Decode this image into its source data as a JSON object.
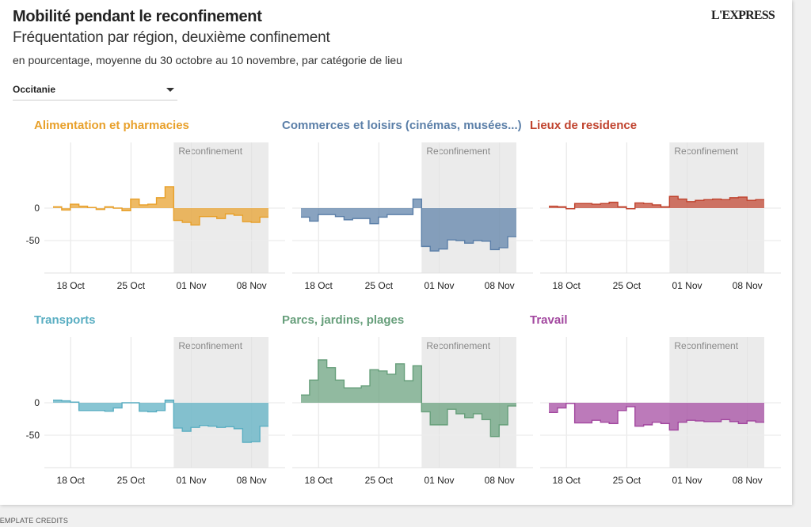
{
  "header": {
    "title": "Mobilité pendant le reconfinement",
    "subtitle": "Fréquentation par région, deuxième confinement",
    "description": "en pourcentage, moyenne du 30 octobre au 10 novembre, par catégorie de lieu",
    "logo": "L'EXPRESS"
  },
  "region_select": {
    "selected": "Occitanie"
  },
  "footer": {
    "credits": "TEMPLATE CREDITS"
  },
  "chart_data": {
    "type": "area",
    "step": true,
    "dates": [
      "16 Oct",
      "17 Oct",
      "18 Oct",
      "19 Oct",
      "20 Oct",
      "21 Oct",
      "22 Oct",
      "23 Oct",
      "24 Oct",
      "25 Oct",
      "26 Oct",
      "27 Oct",
      "28 Oct",
      "29 Oct",
      "30 Oct",
      "31 Oct",
      "01 Nov",
      "02 Nov",
      "03 Nov",
      "04 Nov",
      "05 Nov",
      "06 Nov",
      "07 Nov",
      "08 Nov",
      "09 Nov"
    ],
    "x_ticks": [
      "18 Oct",
      "25 Oct",
      "01 Nov",
      "08 Nov"
    ],
    "y_ticks": [
      "0",
      "-50"
    ],
    "y_tick_values": [
      0,
      -50
    ],
    "ylim": [
      -100,
      100
    ],
    "annotation": {
      "label": "Reconfinement",
      "from": "30 Oct",
      "to": "10 Nov"
    },
    "panels": [
      {
        "title": "Alimentation et pharmacies",
        "color": "#e8a02a",
        "values": [
          2,
          -3,
          6,
          3,
          1,
          -2,
          2,
          0,
          -4,
          14,
          5,
          6,
          16,
          33,
          -19,
          -22,
          -26,
          -13,
          -13,
          -16,
          -9,
          -11,
          -21,
          -22,
          -14
        ]
      },
      {
        "title": "Commerces et loisirs (cinémas, musées...)",
        "color": "#5b7fa8",
        "values": [
          -14,
          -20,
          -10,
          -10,
          -13,
          -18,
          -16,
          -16,
          -24,
          -14,
          -10,
          -10,
          -10,
          14,
          -59,
          -66,
          -63,
          -49,
          -50,
          -54,
          -50,
          -51,
          -64,
          -61,
          -44
        ]
      },
      {
        "title": "Lieux de residence",
        "color": "#c0432e",
        "values": [
          3,
          2,
          -1,
          7,
          7,
          6,
          7,
          9,
          2,
          -1,
          8,
          7,
          5,
          2,
          18,
          14,
          10,
          12,
          13,
          14,
          13,
          16,
          17,
          12,
          13
        ]
      },
      {
        "title": "Transports",
        "color": "#5aaec2",
        "values": [
          4,
          3,
          1,
          -12,
          -12,
          -12,
          -13,
          -8,
          0,
          0,
          -13,
          -14,
          -12,
          4,
          -39,
          -44,
          -38,
          -35,
          -36,
          -38,
          -37,
          -40,
          -61,
          -60,
          -36
        ]
      },
      {
        "title": "Parcs, jardins, plages",
        "color": "#679f7b",
        "values": [
          12,
          35,
          66,
          54,
          35,
          23,
          23,
          26,
          51,
          49,
          44,
          60,
          34,
          57,
          -14,
          -34,
          -34,
          -10,
          -17,
          -23,
          -17,
          -26,
          -52,
          -34,
          -5
        ]
      },
      {
        "title": "Travail",
        "color": "#a2479f",
        "values": [
          -15,
          -8,
          -1,
          -31,
          -31,
          -27,
          -30,
          -32,
          -12,
          -6,
          -36,
          -34,
          -30,
          -32,
          -42,
          -30,
          -27,
          -28,
          -29,
          -29,
          -26,
          -29,
          -32,
          -28,
          -30
        ]
      }
    ]
  }
}
